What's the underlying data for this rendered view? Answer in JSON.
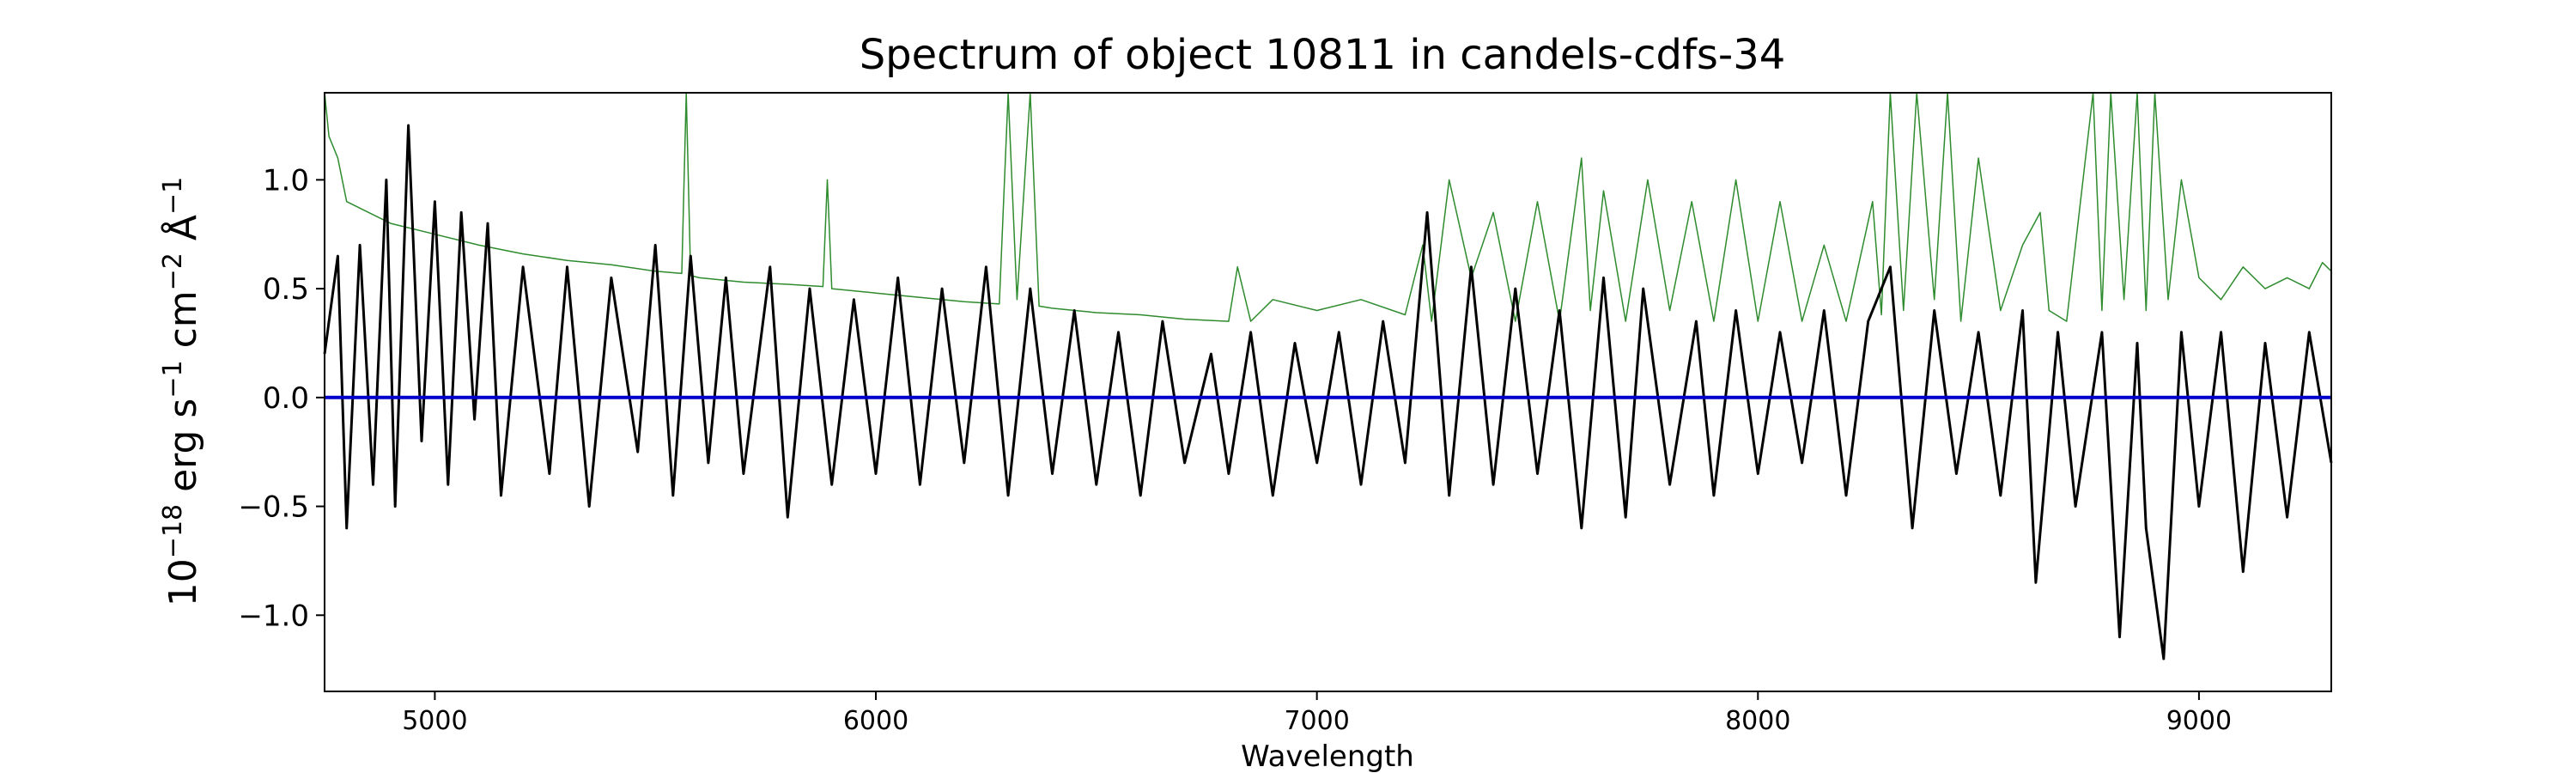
{
  "chart_data": {
    "type": "line",
    "title": "Spectrum of object 10811 in candels-cdfs-34",
    "xlabel": "Wavelength",
    "ylabel": "10^-18 erg s^-1 cm^-2 Å^-1",
    "xlim": [
      4750,
      9300
    ],
    "ylim": [
      -1.35,
      1.4
    ],
    "xticks": [
      5000,
      6000,
      7000,
      8000,
      9000
    ],
    "yticks": [
      -1.0,
      -0.5,
      0.0,
      0.5,
      1.0
    ],
    "ytick_labels": [
      "−1.0",
      "−0.5",
      "0.0",
      "0.5",
      "1.0"
    ],
    "grid": false,
    "series": [
      {
        "role": "flux",
        "color": "#000000",
        "x": [
          4750,
          4780,
          4800,
          4830,
          4860,
          4890,
          4910,
          4940,
          4970,
          5000,
          5030,
          5060,
          5090,
          5120,
          5150,
          5200,
          5260,
          5300,
          5350,
          5400,
          5460,
          5500,
          5540,
          5580,
          5620,
          5660,
          5700,
          5760,
          5800,
          5850,
          5900,
          5950,
          6000,
          6050,
          6100,
          6150,
          6200,
          6250,
          6300,
          6350,
          6400,
          6450,
          6500,
          6550,
          6600,
          6650,
          6700,
          6760,
          6800,
          6850,
          6900,
          6950,
          7000,
          7050,
          7100,
          7150,
          7200,
          7250,
          7300,
          7350,
          7400,
          7450,
          7500,
          7550,
          7600,
          7650,
          7700,
          7740,
          7800,
          7860,
          7900,
          7950,
          8000,
          8050,
          8100,
          8150,
          8200,
          8250,
          8300,
          8350,
          8400,
          8450,
          8500,
          8550,
          8600,
          8630,
          8680,
          8720,
          8780,
          8820,
          8860,
          8880,
          8920,
          8960,
          9000,
          9050,
          9100,
          9150,
          9200,
          9250,
          9300
        ],
        "y": [
          0.2,
          0.65,
          -0.6,
          0.7,
          -0.4,
          1.0,
          -0.5,
          1.25,
          -0.2,
          0.9,
          -0.4,
          0.85,
          -0.1,
          0.8,
          -0.45,
          0.6,
          -0.35,
          0.6,
          -0.5,
          0.55,
          -0.25,
          0.7,
          -0.45,
          0.65,
          -0.3,
          0.55,
          -0.35,
          0.6,
          -0.55,
          0.5,
          -0.4,
          0.45,
          -0.35,
          0.55,
          -0.4,
          0.5,
          -0.3,
          0.6,
          -0.45,
          0.5,
          -0.35,
          0.4,
          -0.4,
          0.3,
          -0.45,
          0.35,
          -0.3,
          0.2,
          -0.35,
          0.3,
          -0.45,
          0.25,
          -0.3,
          0.3,
          -0.4,
          0.35,
          -0.3,
          0.85,
          -0.45,
          0.6,
          -0.4,
          0.5,
          -0.35,
          0.4,
          -0.6,
          0.55,
          -0.55,
          0.5,
          -0.4,
          0.35,
          -0.45,
          0.4,
          -0.35,
          0.3,
          -0.3,
          0.4,
          -0.45,
          0.35,
          0.6,
          -0.6,
          0.4,
          -0.35,
          0.3,
          -0.45,
          0.4,
          -0.85,
          0.3,
          -0.5,
          0.3,
          -1.1,
          0.25,
          -0.6,
          -1.2,
          0.3,
          -0.5,
          0.3,
          -0.8,
          0.25,
          -0.55,
          0.3,
          -0.3
        ]
      },
      {
        "role": "error",
        "color": "#2e8b2e",
        "x": [
          4750,
          4760,
          4780,
          4800,
          4850,
          4900,
          5000,
          5100,
          5200,
          5300,
          5400,
          5500,
          5560,
          5570,
          5580,
          5600,
          5700,
          5800,
          5880,
          5890,
          5900,
          6000,
          6100,
          6200,
          6280,
          6300,
          6320,
          6350,
          6370,
          6400,
          6500,
          6600,
          6700,
          6800,
          6820,
          6850,
          6900,
          7000,
          7100,
          7200,
          7240,
          7260,
          7300,
          7350,
          7400,
          7450,
          7500,
          7550,
          7600,
          7620,
          7650,
          7700,
          7750,
          7800,
          7850,
          7900,
          7950,
          8000,
          8050,
          8100,
          8150,
          8200,
          8260,
          8280,
          8300,
          8330,
          8360,
          8400,
          8430,
          8460,
          8500,
          8550,
          8600,
          8640,
          8660,
          8700,
          8760,
          8780,
          8800,
          8830,
          8860,
          8880,
          8900,
          8930,
          8960,
          9000,
          9050,
          9100,
          9150,
          9200,
          9250,
          9280,
          9300
        ],
        "y": [
          1.4,
          1.2,
          1.1,
          0.9,
          0.85,
          0.8,
          0.75,
          0.7,
          0.66,
          0.63,
          0.61,
          0.58,
          0.57,
          1.4,
          0.56,
          0.55,
          0.53,
          0.52,
          0.51,
          1.0,
          0.5,
          0.48,
          0.46,
          0.44,
          0.43,
          1.4,
          0.45,
          1.4,
          0.42,
          0.41,
          0.39,
          0.38,
          0.36,
          0.35,
          0.6,
          0.35,
          0.45,
          0.4,
          0.45,
          0.38,
          0.7,
          0.35,
          1.0,
          0.55,
          0.85,
          0.35,
          0.9,
          0.35,
          1.1,
          0.4,
          0.95,
          0.35,
          1.0,
          0.4,
          0.9,
          0.35,
          1.0,
          0.35,
          0.9,
          0.35,
          0.7,
          0.35,
          0.9,
          0.38,
          1.4,
          0.4,
          1.4,
          0.45,
          1.4,
          0.35,
          1.1,
          0.4,
          0.7,
          0.85,
          0.4,
          0.35,
          1.4,
          0.4,
          1.4,
          0.45,
          1.4,
          0.4,
          1.4,
          0.45,
          1.0,
          0.55,
          0.45,
          0.6,
          0.5,
          0.55,
          0.5,
          0.62,
          0.58
        ]
      },
      {
        "role": "zero",
        "color": "#0000cc",
        "x": [
          4750,
          9300
        ],
        "y": [
          0.0,
          0.0
        ]
      }
    ]
  }
}
